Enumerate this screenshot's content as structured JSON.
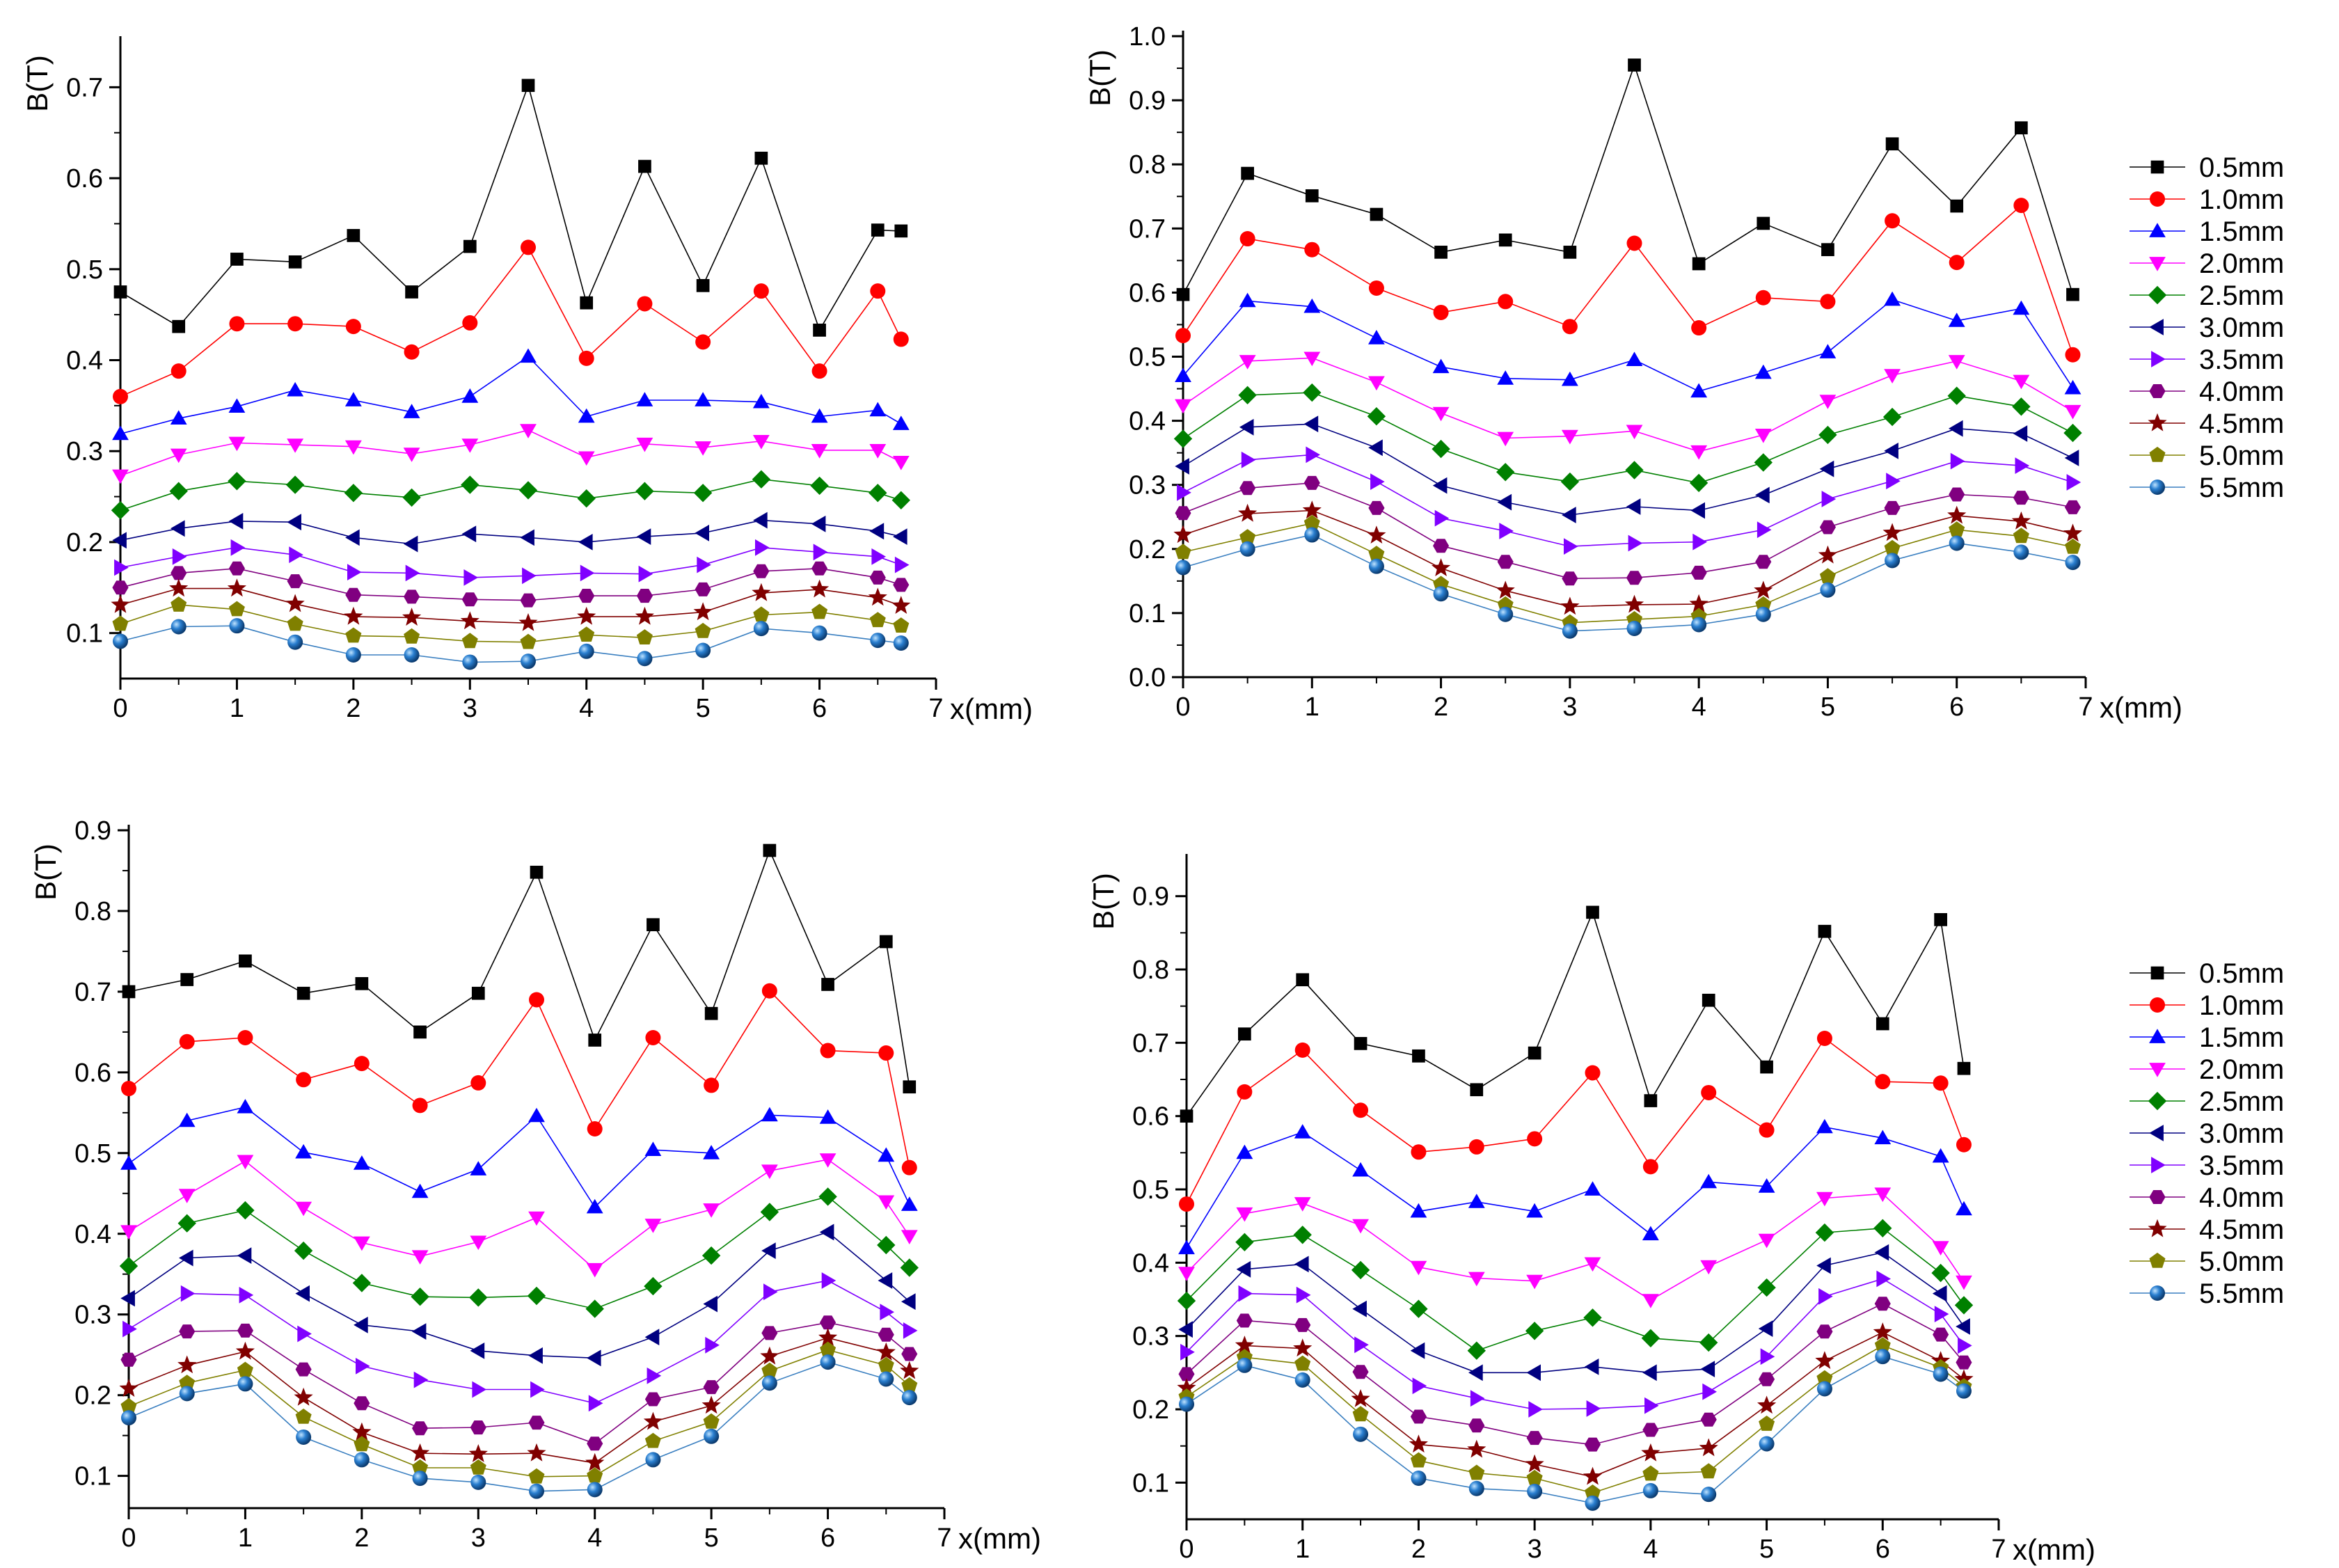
{
  "legend_entries": [
    "0.5mm",
    "1.0mm",
    "1.5mm",
    "2.0mm",
    "2.5mm",
    "3.0mm",
    "3.5mm",
    "4.0mm",
    "4.5mm",
    "5.0mm",
    "5.5mm"
  ],
  "series_styles": [
    {
      "color": "#000000",
      "marker": "square"
    },
    {
      "color": "#ff0000",
      "marker": "circle"
    },
    {
      "color": "#0000ff",
      "marker": "triangle-up"
    },
    {
      "color": "#ff00ff",
      "marker": "triangle-down"
    },
    {
      "color": "#008000",
      "marker": "diamond"
    },
    {
      "color": "#000080",
      "marker": "triangle-left"
    },
    {
      "color": "#8000ff",
      "marker": "triangle-right"
    },
    {
      "color": "#800080",
      "marker": "hexagon"
    },
    {
      "color": "#800000",
      "marker": "star"
    },
    {
      "color": "#808000",
      "marker": "pentagon"
    },
    {
      "color": "#3a7fc0",
      "marker": "sphere"
    }
  ],
  "chart_data": [
    {
      "type": "line",
      "panel": "top-left",
      "xlabel": "x(mm)",
      "ylabel": "B(T)",
      "xlim": [
        0,
        7
      ],
      "ylim": [
        0.05,
        0.75
      ],
      "xticks": [
        0,
        1,
        2,
        3,
        4,
        5,
        6,
        7
      ],
      "yticks": [
        0.1,
        0.2,
        0.3,
        0.4,
        0.5,
        0.6,
        0.7
      ],
      "legend": "none",
      "x": [
        0,
        0.5,
        1,
        1.5,
        2,
        2.5,
        3,
        3.5,
        4,
        4.5,
        5,
        5.5,
        6,
        6.5,
        6.7
      ],
      "series": [
        {
          "name": "0.5mm",
          "values": [
            0.475,
            0.437,
            0.511,
            0.508,
            0.537,
            0.475,
            0.525,
            0.702,
            0.463,
            0.613,
            0.482,
            0.622,
            0.433,
            0.543,
            0.542
          ]
        },
        {
          "name": "1.0mm",
          "values": [
            0.36,
            0.388,
            0.44,
            0.44,
            0.437,
            0.409,
            0.441,
            0.524,
            0.402,
            0.462,
            0.42,
            0.476,
            0.388,
            0.476,
            0.423
          ]
        },
        {
          "name": "1.5mm",
          "values": [
            0.319,
            0.336,
            0.349,
            0.367,
            0.356,
            0.343,
            0.36,
            0.404,
            0.338,
            0.356,
            0.356,
            0.354,
            0.338,
            0.345,
            0.33
          ]
        },
        {
          "name": "2.0mm",
          "values": [
            0.273,
            0.296,
            0.309,
            0.307,
            0.305,
            0.297,
            0.307,
            0.323,
            0.293,
            0.308,
            0.304,
            0.311,
            0.301,
            0.301,
            0.288
          ]
        },
        {
          "name": "2.5mm",
          "values": [
            0.235,
            0.256,
            0.267,
            0.263,
            0.254,
            0.249,
            0.263,
            0.257,
            0.248,
            0.256,
            0.254,
            0.269,
            0.262,
            0.254,
            0.246
          ]
        },
        {
          "name": "3.0mm",
          "values": [
            0.202,
            0.215,
            0.223,
            0.222,
            0.205,
            0.198,
            0.209,
            0.205,
            0.2,
            0.206,
            0.21,
            0.224,
            0.22,
            0.212,
            0.206
          ]
        },
        {
          "name": "3.5mm",
          "values": [
            0.172,
            0.184,
            0.194,
            0.186,
            0.167,
            0.166,
            0.161,
            0.163,
            0.166,
            0.165,
            0.175,
            0.194,
            0.189,
            0.184,
            0.175
          ]
        },
        {
          "name": "4.0mm",
          "values": [
            0.15,
            0.166,
            0.171,
            0.157,
            0.142,
            0.14,
            0.137,
            0.136,
            0.141,
            0.141,
            0.148,
            0.168,
            0.171,
            0.161,
            0.153
          ]
        },
        {
          "name": "4.5mm",
          "values": [
            0.131,
            0.149,
            0.149,
            0.132,
            0.118,
            0.117,
            0.113,
            0.111,
            0.118,
            0.118,
            0.123,
            0.144,
            0.148,
            0.139,
            0.13
          ]
        },
        {
          "name": "5.0mm",
          "values": [
            0.11,
            0.131,
            0.126,
            0.11,
            0.097,
            0.096,
            0.091,
            0.09,
            0.098,
            0.095,
            0.102,
            0.12,
            0.123,
            0.114,
            0.108
          ]
        },
        {
          "name": "5.5mm",
          "values": [
            0.091,
            0.107,
            0.108,
            0.09,
            0.076,
            0.076,
            0.068,
            0.069,
            0.08,
            0.072,
            0.081,
            0.105,
            0.1,
            0.092,
            0.089
          ]
        }
      ]
    },
    {
      "type": "line",
      "panel": "top-right",
      "xlabel": "x(mm)",
      "ylabel": "B(T)",
      "xlim": [
        0,
        7
      ],
      "ylim": [
        0,
        1.0
      ],
      "xticks": [
        0,
        1,
        2,
        3,
        4,
        5,
        6,
        7
      ],
      "yticks": [
        0.0,
        0.1,
        0.2,
        0.3,
        0.4,
        0.5,
        0.6,
        0.7,
        0.8,
        0.9,
        1.0
      ],
      "legend": "right",
      "x": [
        0,
        0.5,
        1,
        1.5,
        2,
        2.5,
        3,
        3.5,
        4,
        4.5,
        5,
        5.5,
        6,
        6.5,
        6.9
      ],
      "series": [
        {
          "name": "0.5mm",
          "values": [
            0.597,
            0.786,
            0.751,
            0.722,
            0.663,
            0.682,
            0.663,
            0.955,
            0.645,
            0.708,
            0.667,
            0.832,
            0.735,
            0.857,
            0.597
          ]
        },
        {
          "name": "1.0mm",
          "values": [
            0.533,
            0.684,
            0.667,
            0.607,
            0.569,
            0.586,
            0.547,
            0.677,
            0.545,
            0.592,
            0.586,
            0.712,
            0.647,
            0.736,
            0.503
          ]
        },
        {
          "name": "1.5mm",
          "values": [
            0.47,
            0.587,
            0.578,
            0.529,
            0.484,
            0.466,
            0.464,
            0.495,
            0.446,
            0.475,
            0.507,
            0.589,
            0.556,
            0.575,
            0.451
          ]
        },
        {
          "name": "2.0mm",
          "values": [
            0.424,
            0.493,
            0.498,
            0.46,
            0.412,
            0.373,
            0.376,
            0.384,
            0.352,
            0.378,
            0.431,
            0.471,
            0.493,
            0.462,
            0.415
          ]
        },
        {
          "name": "2.5mm",
          "values": [
            0.372,
            0.44,
            0.444,
            0.407,
            0.356,
            0.32,
            0.305,
            0.323,
            0.303,
            0.335,
            0.378,
            0.406,
            0.439,
            0.422,
            0.381
          ]
        },
        {
          "name": "3.0mm",
          "values": [
            0.329,
            0.39,
            0.395,
            0.358,
            0.299,
            0.273,
            0.253,
            0.266,
            0.26,
            0.284,
            0.325,
            0.353,
            0.388,
            0.38,
            0.342
          ]
        },
        {
          "name": "3.5mm",
          "values": [
            0.288,
            0.339,
            0.347,
            0.305,
            0.248,
            0.228,
            0.204,
            0.209,
            0.211,
            0.23,
            0.278,
            0.306,
            0.337,
            0.33,
            0.304
          ]
        },
        {
          "name": "4.0mm",
          "values": [
            0.256,
            0.295,
            0.303,
            0.264,
            0.205,
            0.18,
            0.154,
            0.155,
            0.163,
            0.18,
            0.234,
            0.264,
            0.285,
            0.28,
            0.265
          ]
        },
        {
          "name": "4.5mm",
          "values": [
            0.222,
            0.255,
            0.26,
            0.221,
            0.17,
            0.135,
            0.11,
            0.113,
            0.114,
            0.135,
            0.19,
            0.225,
            0.252,
            0.243,
            0.224
          ]
        },
        {
          "name": "5.0mm",
          "values": [
            0.195,
            0.218,
            0.24,
            0.192,
            0.145,
            0.113,
            0.085,
            0.09,
            0.095,
            0.113,
            0.157,
            0.201,
            0.23,
            0.22,
            0.203
          ]
        },
        {
          "name": "5.5mm",
          "values": [
            0.171,
            0.2,
            0.222,
            0.173,
            0.13,
            0.098,
            0.072,
            0.076,
            0.082,
            0.098,
            0.136,
            0.182,
            0.209,
            0.195,
            0.179
          ]
        }
      ]
    },
    {
      "type": "line",
      "panel": "bottom-left",
      "xlabel": "x(mm)",
      "ylabel": "B(T)",
      "xlim": [
        0,
        7
      ],
      "ylim": [
        0.06,
        0.9
      ],
      "xticks": [
        0,
        1,
        2,
        3,
        4,
        5,
        6,
        7
      ],
      "yticks": [
        0.1,
        0.2,
        0.3,
        0.4,
        0.5,
        0.6,
        0.7,
        0.8,
        0.9
      ],
      "legend": "none",
      "x": [
        0,
        0.5,
        1,
        1.5,
        2,
        2.5,
        3,
        3.5,
        4,
        4.5,
        5,
        5.5,
        6,
        6.5,
        6.7
      ],
      "series": [
        {
          "name": "0.5mm",
          "values": [
            0.7,
            0.715,
            0.738,
            0.698,
            0.71,
            0.65,
            0.698,
            0.848,
            0.64,
            0.783,
            0.673,
            0.875,
            0.709,
            0.762,
            0.582
          ]
        },
        {
          "name": "1.0mm",
          "values": [
            0.58,
            0.638,
            0.643,
            0.591,
            0.611,
            0.559,
            0.587,
            0.69,
            0.53,
            0.643,
            0.584,
            0.701,
            0.627,
            0.624,
            0.482
          ]
        },
        {
          "name": "1.5mm",
          "values": [
            0.487,
            0.54,
            0.557,
            0.501,
            0.487,
            0.452,
            0.48,
            0.546,
            0.433,
            0.504,
            0.5,
            0.547,
            0.544,
            0.497,
            0.436
          ]
        },
        {
          "name": "2.0mm",
          "values": [
            0.403,
            0.448,
            0.49,
            0.432,
            0.389,
            0.372,
            0.39,
            0.42,
            0.356,
            0.411,
            0.43,
            0.478,
            0.492,
            0.44,
            0.397
          ]
        },
        {
          "name": "2.5mm",
          "values": [
            0.36,
            0.413,
            0.429,
            0.379,
            0.339,
            0.322,
            0.321,
            0.323,
            0.307,
            0.335,
            0.373,
            0.427,
            0.446,
            0.386,
            0.358
          ]
        },
        {
          "name": "3.0mm",
          "values": [
            0.32,
            0.37,
            0.373,
            0.326,
            0.287,
            0.279,
            0.255,
            0.249,
            0.246,
            0.272,
            0.313,
            0.379,
            0.402,
            0.342,
            0.316
          ]
        },
        {
          "name": "3.5mm",
          "values": [
            0.282,
            0.326,
            0.324,
            0.276,
            0.236,
            0.219,
            0.207,
            0.207,
            0.19,
            0.224,
            0.262,
            0.328,
            0.342,
            0.303,
            0.28
          ]
        },
        {
          "name": "4.0mm",
          "values": [
            0.244,
            0.279,
            0.28,
            0.232,
            0.19,
            0.159,
            0.16,
            0.166,
            0.14,
            0.195,
            0.21,
            0.277,
            0.29,
            0.275,
            0.251
          ]
        },
        {
          "name": "4.5mm",
          "values": [
            0.208,
            0.237,
            0.254,
            0.197,
            0.154,
            0.128,
            0.127,
            0.128,
            0.116,
            0.167,
            0.187,
            0.248,
            0.271,
            0.253,
            0.23
          ]
        },
        {
          "name": "5.0mm",
          "values": [
            0.186,
            0.215,
            0.231,
            0.173,
            0.139,
            0.11,
            0.11,
            0.099,
            0.1,
            0.143,
            0.167,
            0.23,
            0.256,
            0.237,
            0.212
          ]
        },
        {
          "name": "5.5mm",
          "values": [
            0.172,
            0.202,
            0.214,
            0.148,
            0.12,
            0.097,
            0.092,
            0.081,
            0.083,
            0.12,
            0.149,
            0.215,
            0.241,
            0.22,
            0.197
          ]
        }
      ]
    },
    {
      "type": "line",
      "panel": "bottom-right",
      "xlabel": "x(mm)",
      "ylabel": "B(T)",
      "xlim": [
        0,
        7
      ],
      "ylim": [
        0.05,
        0.95
      ],
      "xticks": [
        0,
        1,
        2,
        3,
        4,
        5,
        6,
        7
      ],
      "yticks": [
        0.1,
        0.2,
        0.3,
        0.4,
        0.5,
        0.6,
        0.7,
        0.8,
        0.9
      ],
      "legend": "right",
      "x": [
        0,
        0.5,
        1,
        1.5,
        2,
        2.5,
        3,
        3.5,
        4,
        4.5,
        5,
        5.5,
        6,
        6.5,
        6.7
      ],
      "series": [
        {
          "name": "0.5mm",
          "values": [
            0.6,
            0.712,
            0.786,
            0.699,
            0.682,
            0.636,
            0.686,
            0.878,
            0.621,
            0.758,
            0.667,
            0.852,
            0.726,
            0.868,
            0.665
          ]
        },
        {
          "name": "1.0mm",
          "values": [
            0.48,
            0.633,
            0.69,
            0.608,
            0.551,
            0.558,
            0.569,
            0.659,
            0.531,
            0.632,
            0.581,
            0.706,
            0.647,
            0.645,
            0.561
          ]
        },
        {
          "name": "1.5mm",
          "values": [
            0.42,
            0.55,
            0.578,
            0.526,
            0.47,
            0.483,
            0.47,
            0.5,
            0.439,
            0.51,
            0.504,
            0.585,
            0.57,
            0.545,
            0.473
          ]
        },
        {
          "name": "2.0mm",
          "values": [
            0.386,
            0.467,
            0.481,
            0.451,
            0.394,
            0.379,
            0.375,
            0.399,
            0.349,
            0.395,
            0.431,
            0.488,
            0.494,
            0.421,
            0.374
          ]
        },
        {
          "name": "2.5mm",
          "values": [
            0.348,
            0.428,
            0.438,
            0.39,
            0.337,
            0.28,
            0.307,
            0.325,
            0.297,
            0.291,
            0.366,
            0.441,
            0.447,
            0.386,
            0.342
          ]
        },
        {
          "name": "3.0mm",
          "values": [
            0.309,
            0.391,
            0.398,
            0.337,
            0.28,
            0.25,
            0.25,
            0.258,
            0.25,
            0.255,
            0.31,
            0.396,
            0.414,
            0.358,
            0.313
          ]
        },
        {
          "name": "3.5mm",
          "values": [
            0.278,
            0.358,
            0.356,
            0.288,
            0.232,
            0.215,
            0.2,
            0.201,
            0.205,
            0.224,
            0.272,
            0.354,
            0.378,
            0.33,
            0.287
          ]
        },
        {
          "name": "4.0mm",
          "values": [
            0.248,
            0.321,
            0.315,
            0.251,
            0.19,
            0.178,
            0.161,
            0.152,
            0.172,
            0.186,
            0.241,
            0.306,
            0.344,
            0.302,
            0.264
          ]
        },
        {
          "name": "4.5mm",
          "values": [
            0.229,
            0.287,
            0.283,
            0.214,
            0.152,
            0.145,
            0.125,
            0.108,
            0.14,
            0.147,
            0.205,
            0.266,
            0.305,
            0.266,
            0.241
          ]
        },
        {
          "name": "5.0mm",
          "values": [
            0.217,
            0.271,
            0.262,
            0.193,
            0.13,
            0.113,
            0.106,
            0.086,
            0.112,
            0.115,
            0.18,
            0.242,
            0.287,
            0.257,
            0.231
          ]
        },
        {
          "name": "5.5mm",
          "values": [
            0.207,
            0.26,
            0.24,
            0.166,
            0.106,
            0.092,
            0.088,
            0.072,
            0.089,
            0.084,
            0.153,
            0.228,
            0.272,
            0.248,
            0.225
          ]
        }
      ]
    }
  ]
}
